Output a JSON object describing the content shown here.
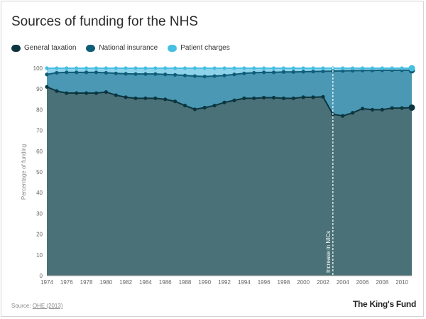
{
  "header": {
    "title": "Sources of funding for the NHS"
  },
  "legend": [
    {
      "label": "General taxation",
      "color": "#0c3540"
    },
    {
      "label": "National insurance",
      "color": "#0f5d78"
    },
    {
      "label": "Patient charges",
      "color": "#47bfe3"
    }
  ],
  "footer": {
    "source_prefix": "Source:",
    "source_link": "OHE (2013)",
    "brand": "The King's Fund"
  },
  "chart_data": {
    "type": "area",
    "title": "Sources of funding for the NHS",
    "xlabel": "",
    "ylabel": "Percentage of funding",
    "xlim": [
      1974,
      2011
    ],
    "ylim": [
      0,
      100
    ],
    "yticks": [
      0,
      10,
      20,
      30,
      40,
      50,
      60,
      70,
      80,
      90,
      100
    ],
    "xticks": [
      1974,
      1976,
      1978,
      1980,
      1982,
      1984,
      1986,
      1988,
      1990,
      1992,
      1994,
      1996,
      1998,
      2000,
      2002,
      2004,
      2006,
      2008,
      2010
    ],
    "stacked": true,
    "grid": false,
    "legend_position": "top-left",
    "x": [
      1974,
      1975,
      1976,
      1977,
      1978,
      1979,
      1980,
      1981,
      1982,
      1983,
      1984,
      1985,
      1986,
      1987,
      1988,
      1989,
      1990,
      1991,
      1992,
      1993,
      1994,
      1995,
      1996,
      1997,
      1998,
      1999,
      2000,
      2001,
      2002,
      2003,
      2004,
      2005,
      2006,
      2007,
      2008,
      2009,
      2010,
      2011
    ],
    "series": [
      {
        "name": "General taxation",
        "color": "#0c3540",
        "fill": "#4a7177",
        "cumulative": [
          91,
          89,
          88,
          88,
          88,
          88,
          88.5,
          87,
          86,
          85.5,
          85.5,
          85.5,
          85,
          84,
          82,
          80.2,
          81,
          82,
          83.5,
          84.5,
          85.5,
          85.5,
          85.8,
          85.8,
          85.5,
          85.5,
          86,
          86,
          86.2,
          77.8,
          77,
          78.5,
          80.5,
          80,
          80,
          80.8,
          80.8,
          81
        ]
      },
      {
        "name": "National insurance",
        "color": "#0f5d78",
        "fill": "#4a98b3",
        "cumulative": [
          97,
          97.8,
          98,
          98,
          98,
          98,
          97.8,
          97.5,
          97.3,
          97.2,
          97.2,
          97.2,
          97,
          96.8,
          96.5,
          96.2,
          96,
          96.2,
          96.5,
          97,
          97.5,
          97.8,
          98,
          98,
          98.2,
          98.2,
          98.3,
          98.4,
          98.5,
          98.6,
          98.7,
          98.8,
          98.9,
          98.9,
          99,
          99,
          99,
          99
        ]
      },
      {
        "name": "Patient charges",
        "color": "#47bfe3",
        "fill": "#8fd3ea",
        "cumulative": [
          100,
          100,
          100,
          100,
          100,
          100,
          100,
          100,
          100,
          100,
          100,
          100,
          100,
          100,
          100,
          100,
          100,
          100,
          100,
          100,
          100,
          100,
          100,
          100,
          100,
          100,
          100,
          100,
          100,
          100,
          100,
          100,
          100,
          100,
          100,
          100,
          100,
          100
        ]
      }
    ],
    "annotations": [
      {
        "x": 2003,
        "label": "Increase in NICs",
        "style": "dashed-vertical"
      }
    ]
  }
}
